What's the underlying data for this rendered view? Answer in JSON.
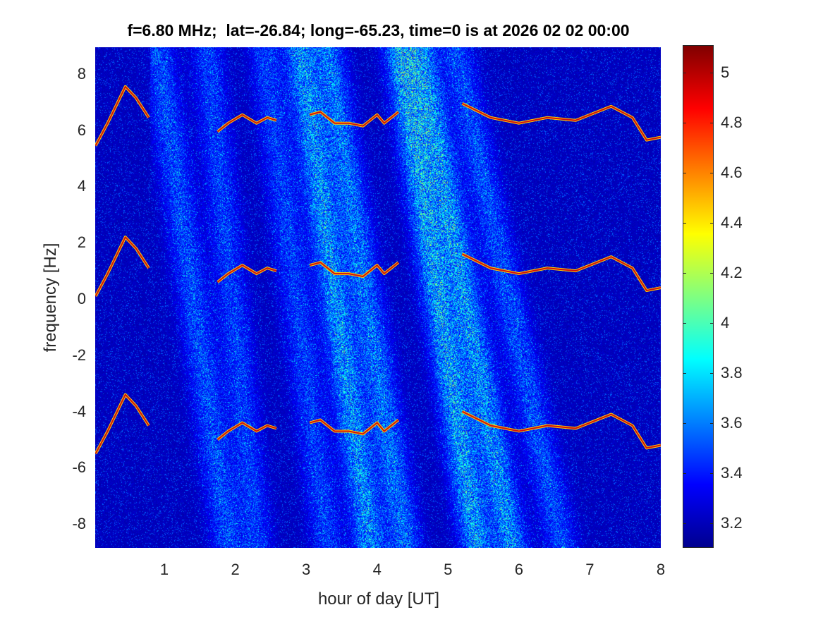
{
  "chart_data": {
    "type": "heatmap",
    "title": "f=6.80 MHz;  lat=-26.84; long=-65.23, time=0 is at 2026 02 02 00:00",
    "xlabel": "hour of day [UT]",
    "ylabel": "frequency [Hz]",
    "xlim": [
      0.025,
      8
    ],
    "ylim": [
      -8.85,
      8.95
    ],
    "xticks": [
      "1",
      "2",
      "3",
      "4",
      "5",
      "6",
      "7",
      "8"
    ],
    "yticks": [
      "8",
      "6",
      "4",
      "2",
      "0",
      "-2",
      "-4",
      "-6",
      "-8"
    ],
    "colorbar": {
      "clim": [
        3.1,
        5.11
      ],
      "ticks": [
        "3.2",
        "3.4",
        "3.6",
        "3.8",
        "4",
        "4.2",
        "4.4",
        "4.6",
        "4.8",
        "5"
      ],
      "colormap": "jet"
    },
    "trace_offsets_hz": [
      5.35,
      0,
      -5.6
    ],
    "traces": [
      {
        "x": [
          0.03,
          0.2,
          0.45,
          0.6,
          0.78
        ],
        "y": [
          0.1,
          0.9,
          2.2,
          1.8,
          1.1
        ]
      },
      {
        "x": [
          1.75,
          1.9,
          2.1,
          2.3,
          2.45,
          2.58
        ],
        "y": [
          0.6,
          0.9,
          1.2,
          0.9,
          1.1,
          1.0
        ]
      },
      {
        "x": [
          3.05,
          3.2,
          3.4,
          3.6,
          3.8,
          4.0,
          4.1,
          4.3
        ],
        "y": [
          1.2,
          1.3,
          0.9,
          0.9,
          0.8,
          1.2,
          0.9,
          1.3
        ]
      },
      {
        "x": [
          5.2,
          5.6,
          6.0,
          6.4,
          6.8,
          7.3,
          7.6,
          7.8,
          8.0
        ],
        "y": [
          1.6,
          1.1,
          0.9,
          1.1,
          1.0,
          1.5,
          1.1,
          0.3,
          0.4
        ]
      }
    ],
    "diffuse_bands": [
      {
        "top_hour": 0.9,
        "bottom_hour": 1.9,
        "strength": 0.35
      },
      {
        "top_hour": 1.6,
        "bottom_hour": 2.3,
        "strength": 0.3
      },
      {
        "top_hour": 2.9,
        "bottom_hour": 3.9,
        "strength": 0.55
      },
      {
        "top_hour": 3.3,
        "bottom_hour": 4.4,
        "strength": 0.45
      },
      {
        "top_hour": 4.3,
        "bottom_hour": 5.4,
        "strength": 0.6
      },
      {
        "top_hour": 4.6,
        "bottom_hour": 5.9,
        "strength": 0.55
      },
      {
        "top_hour": 5.1,
        "bottom_hour": 6.6,
        "strength": 0.35
      },
      {
        "top_hour": 2.4,
        "bottom_hour": 3.3,
        "strength": 0.3
      }
    ]
  }
}
